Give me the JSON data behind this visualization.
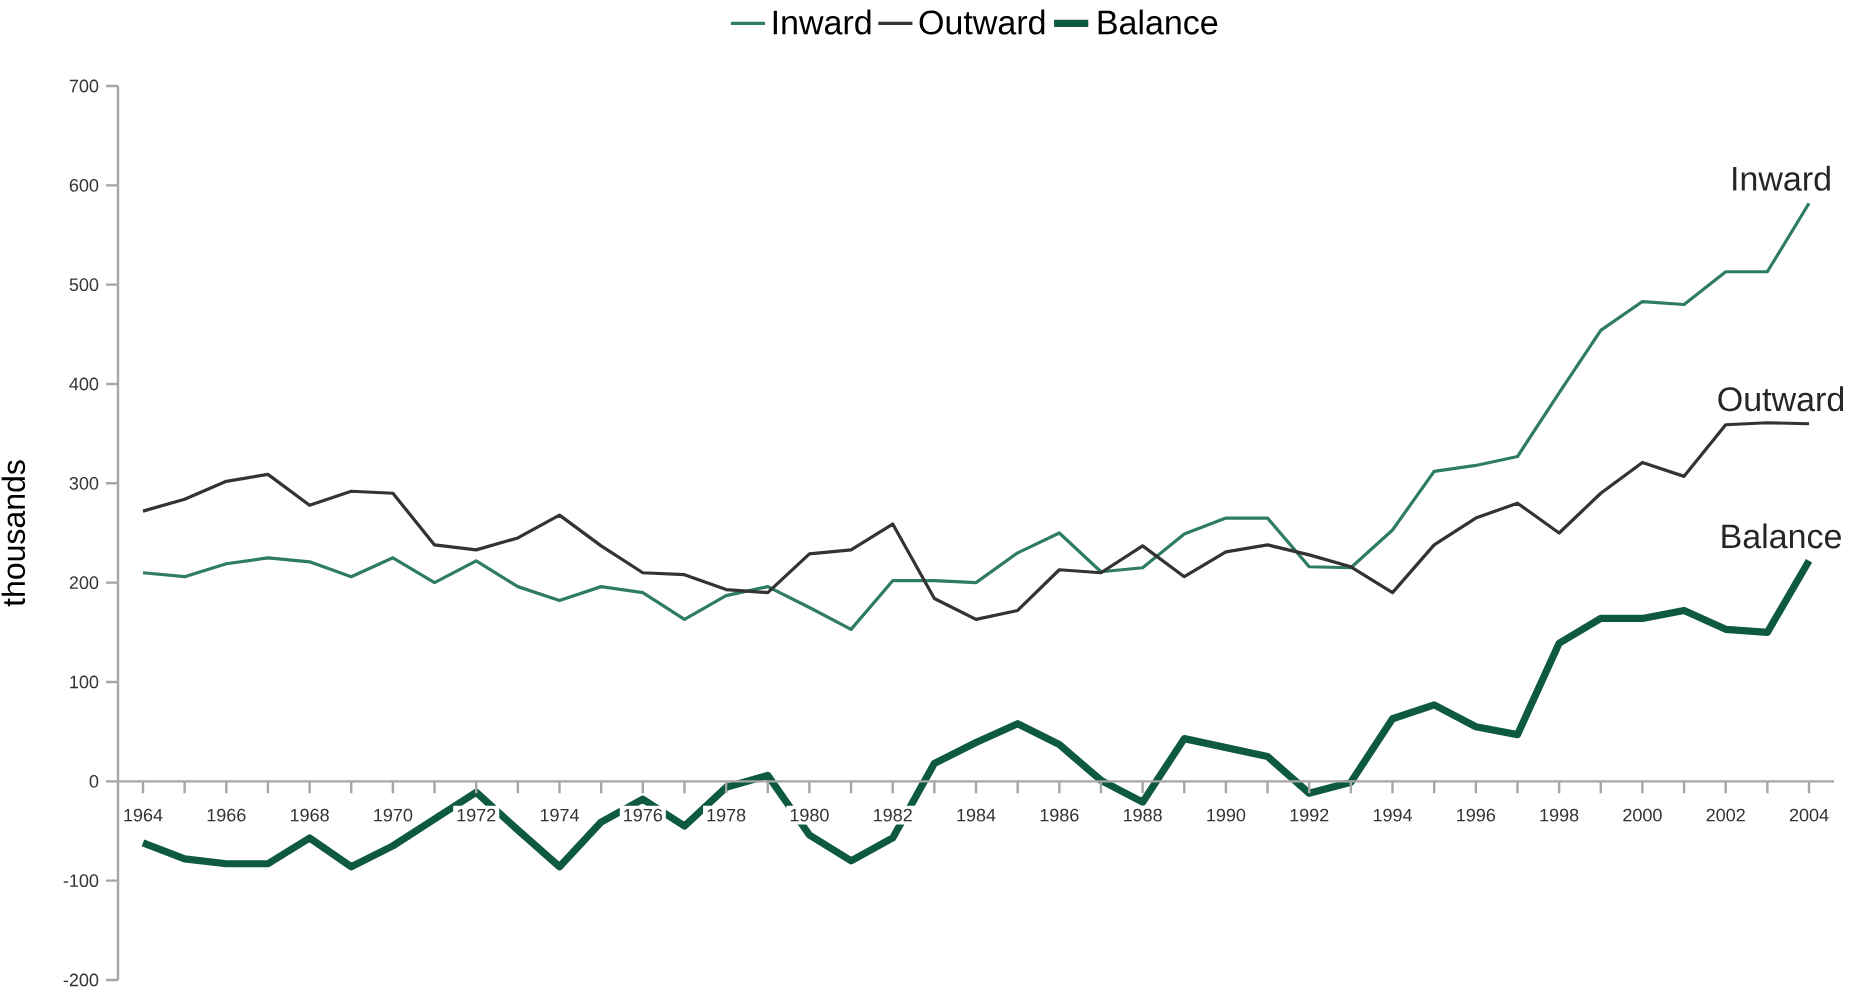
{
  "chart_data": {
    "type": "line",
    "ylabel": "thousands",
    "legend": "top",
    "x": [
      1964,
      1965,
      1966,
      1967,
      1968,
      1969,
      1970,
      1971,
      1972,
      1973,
      1974,
      1975,
      1976,
      1977,
      1978,
      1979,
      1980,
      1981,
      1982,
      1983,
      1984,
      1985,
      1986,
      1987,
      1988,
      1989,
      1990,
      1991,
      1992,
      1993,
      1994,
      1995,
      1996,
      1997,
      1998,
      1999,
      2000,
      2001,
      2002,
      2003,
      2004
    ],
    "series": [
      {
        "name": "Inward",
        "color": "#2f7d5f",
        "values": [
          210,
          206,
          219,
          225,
          221,
          206,
          225,
          200,
          222,
          196,
          182,
          196,
          190,
          163,
          187,
          196,
          175,
          153,
          202,
          202,
          200,
          230,
          250,
          211,
          215,
          249,
          265,
          265,
          216,
          215,
          253,
          312,
          318,
          327,
          391,
          454,
          483,
          480,
          513,
          513,
          582
        ]
      },
      {
        "name": "Outward",
        "color": "#333333",
        "values": [
          272,
          284,
          302,
          309,
          278,
          292,
          290,
          238,
          233,
          245,
          268,
          237,
          210,
          208,
          193,
          190,
          229,
          233,
          259,
          184,
          163,
          172,
          213,
          210,
          237,
          206,
          231,
          238,
          228,
          216,
          190,
          238,
          265,
          280,
          250,
          290,
          321,
          307,
          359,
          361,
          360
        ]
      },
      {
        "name": "Balance",
        "color": "#0d5a3e",
        "values": [
          -62,
          -78,
          -83,
          -83,
          -57,
          -86,
          -65,
          -38,
          -11,
          -49,
          -86,
          -41,
          -18,
          -45,
          -6,
          6,
          -54,
          -80,
          -57,
          18,
          39,
          58,
          37,
          1,
          -21,
          43,
          34,
          25,
          -12,
          -1,
          63,
          77,
          55,
          47,
          139,
          164,
          164,
          172,
          153,
          150,
          222
        ]
      }
    ],
    "xlim": [
      1963.4,
      2004.6
    ],
    "xticks": [
      1964,
      {
        "value": 1965,
        "label": null
      },
      1966,
      {
        "value": 1967,
        "label": null
      },
      1968,
      {
        "value": 1969,
        "label": null
      },
      1970,
      {
        "value": 1971,
        "label": null
      },
      1972,
      {
        "value": 1973,
        "label": null
      },
      1974,
      {
        "value": 1975,
        "label": null
      },
      1976,
      {
        "value": 1977,
        "label": null
      },
      1978,
      {
        "value": 1979,
        "label": null
      },
      1980,
      {
        "value": 1981,
        "label": null
      },
      1982,
      {
        "value": 1983,
        "label": null
      },
      1984,
      {
        "value": 1985,
        "label": null
      },
      1986,
      {
        "value": 1987,
        "label": null
      },
      1988,
      {
        "value": 1989,
        "label": null
      },
      1990,
      {
        "value": 1991,
        "label": null
      },
      1992,
      {
        "value": 1993,
        "label": null
      },
      1994,
      {
        "value": 1995,
        "label": null
      },
      1996,
      {
        "value": 1997,
        "label": null
      },
      1998,
      {
        "value": 1999,
        "label": null
      },
      2000,
      {
        "value": 2001,
        "label": null
      },
      2002,
      {
        "value": 2003,
        "label": null
      },
      2004
    ],
    "ylim": [
      -200,
      700
    ],
    "yticks": [
      -200,
      -100,
      0,
      100,
      200,
      300,
      400,
      500,
      600,
      700
    ]
  }
}
